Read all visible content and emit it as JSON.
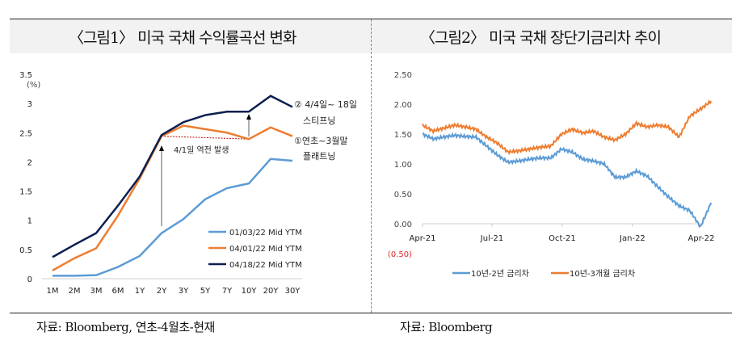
{
  "left_panel": {
    "title": "〈그림1〉 미국 국채 수익률곡선 변화",
    "source": "자료:  Bloomberg, 연초-4월초-현재"
  },
  "right_panel": {
    "title": "〈그림2〉 미국 국채  장단기금리차 추이",
    "source": "자료: Bloomberg"
  },
  "chart_data": [
    {
      "type": "line",
      "ylabel": "(%)",
      "ylim": [
        0,
        3.5
      ],
      "yticks": [
        "0",
        "0.5",
        "1",
        "1.5",
        "2",
        "2.5",
        "3",
        "3.5"
      ],
      "categories": [
        "1M",
        "2M",
        "3M",
        "6M",
        "1Y",
        "2Y",
        "3Y",
        "5Y",
        "7Y",
        "10Y",
        "20Y",
        "30Y"
      ],
      "grid": false,
      "legend_position": "bottom-right",
      "series": [
        {
          "name": "01/03/22 Mid YTM",
          "color": "#5b9bd5",
          "values": [
            0.05,
            0.05,
            0.06,
            0.2,
            0.39,
            0.78,
            1.02,
            1.36,
            1.55,
            1.63,
            2.05,
            2.02
          ]
        },
        {
          "name": "04/01/22 Mid YTM",
          "color": "#ed7d31",
          "values": [
            0.14,
            0.35,
            0.52,
            1.08,
            1.72,
            2.44,
            2.62,
            2.56,
            2.5,
            2.39,
            2.59,
            2.44
          ]
        },
        {
          "name": "04/18/22 Mid YTM",
          "color": "#0d1f4f",
          "values": [
            0.37,
            0.58,
            0.78,
            1.25,
            1.75,
            2.46,
            2.68,
            2.8,
            2.86,
            2.86,
            3.13,
            2.94
          ]
        }
      ],
      "annotations": {
        "inversion": "4/1일 역전 발생",
        "steepening_1": "② 4/4일~ 18일",
        "steepening_2": "스티프닝",
        "flattening_1": "①연초~3월말",
        "flattening_2": "플래트닝"
      }
    },
    {
      "type": "line",
      "ylim": [
        -0.5,
        2.5
      ],
      "yticks": [
        "2.50",
        "2.00",
        "1.50",
        "1.00",
        "0.50",
        "0.00"
      ],
      "ytick_negative": {
        "label": "(0.50)",
        "color": "#e0262b"
      },
      "xticks": [
        "Apr-21",
        "Jul-21",
        "Oct-21",
        "Jan-22",
        "Apr-22"
      ],
      "grid": false,
      "legend_position": "bottom",
      "x": [
        "2021-04-01",
        "2021-04-15",
        "2021-04-29",
        "2021-05-13",
        "2021-05-27",
        "2021-06-10",
        "2021-06-24",
        "2021-07-08",
        "2021-07-22",
        "2021-08-05",
        "2021-08-19",
        "2021-09-02",
        "2021-09-16",
        "2021-09-30",
        "2021-10-14",
        "2021-10-28",
        "2021-11-11",
        "2021-11-25",
        "2021-12-09",
        "2021-12-23",
        "2022-01-06",
        "2022-01-20",
        "2022-02-03",
        "2022-02-17",
        "2022-03-03",
        "2022-03-17",
        "2022-03-31",
        "2022-04-14"
      ],
      "series": [
        {
          "name": "10년-2년 금리차",
          "color": "#5b9bd5",
          "values": [
            1.5,
            1.42,
            1.45,
            1.48,
            1.46,
            1.45,
            1.3,
            1.15,
            1.03,
            1.05,
            1.08,
            1.1,
            1.1,
            1.25,
            1.2,
            1.08,
            1.05,
            1.0,
            0.78,
            0.78,
            0.88,
            0.8,
            0.62,
            0.45,
            0.3,
            0.22,
            -0.05,
            0.35
          ]
        },
        {
          "name": "10년-3개월 금리차",
          "color": "#ed7d31",
          "values": [
            1.65,
            1.55,
            1.6,
            1.65,
            1.62,
            1.58,
            1.45,
            1.35,
            1.2,
            1.22,
            1.25,
            1.28,
            1.3,
            1.5,
            1.58,
            1.52,
            1.55,
            1.45,
            1.4,
            1.5,
            1.68,
            1.62,
            1.65,
            1.62,
            1.45,
            1.8,
            1.92,
            2.05
          ]
        }
      ]
    }
  ]
}
